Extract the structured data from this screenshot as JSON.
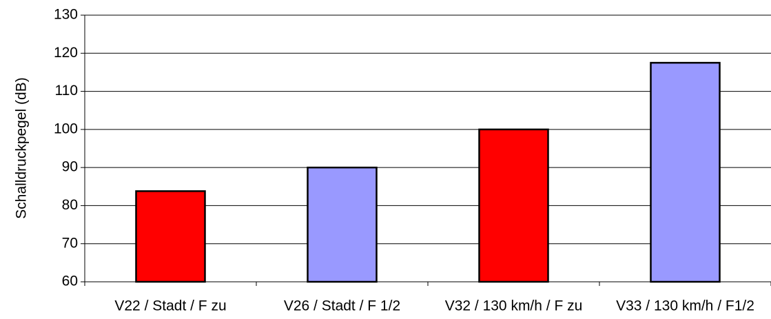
{
  "chart_data": {
    "type": "bar",
    "y_label": "Schalldruckpegel (dB)",
    "categories": [
      "V22 / Stadt / F zu",
      "V26 / Stadt / F 1/2",
      "V32 / 130 km/h / F zu",
      "V33 / 130 km/h / F1/2"
    ],
    "values": [
      83.8,
      90,
      100,
      117.5
    ],
    "colors": [
      "#ff0000",
      "#9999ff",
      "#ff0000",
      "#9999ff"
    ],
    "ylim": [
      60,
      130
    ],
    "yticks": [
      60,
      70,
      80,
      90,
      100,
      110,
      120,
      130
    ],
    "grid": true
  }
}
